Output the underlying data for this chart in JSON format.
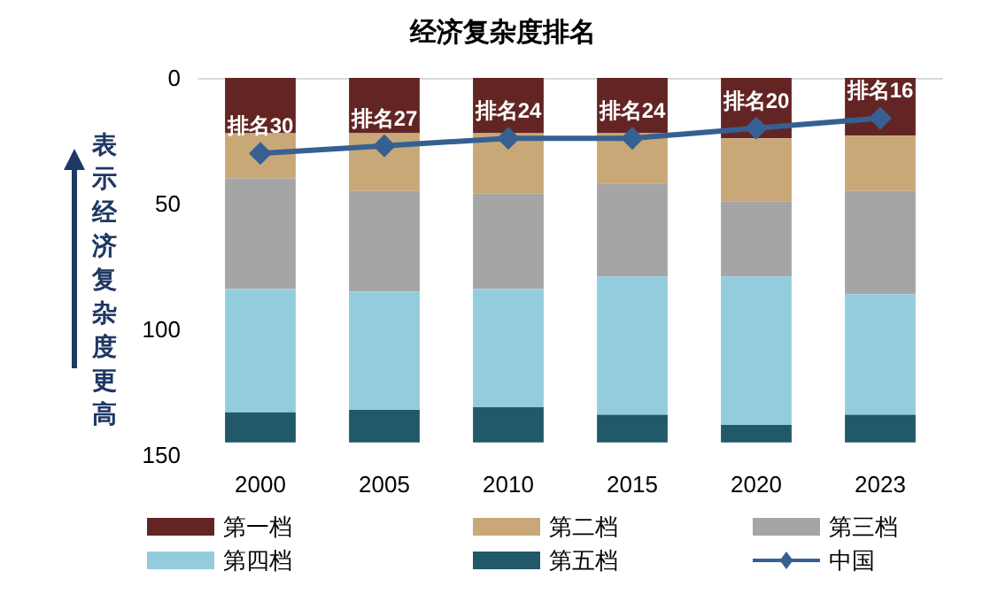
{
  "chart_data": {
    "type": "bar",
    "title": "经济复杂度排名",
    "ylabel": "表示经济复杂度更高",
    "stacked": true,
    "categories": [
      "2000",
      "2005",
      "2010",
      "2015",
      "2020",
      "2023"
    ],
    "ylim": [
      150,
      0
    ],
    "yticks": [
      0,
      50,
      100,
      150
    ],
    "grid": false,
    "legend": "bottom",
    "series": [
      {
        "name": "第一档",
        "color": "#632523",
        "values": [
          22,
          22,
          22,
          22,
          24,
          23
        ]
      },
      {
        "name": "第二档",
        "color": "#c9a878",
        "values": [
          18,
          23,
          24,
          20,
          25,
          22
        ]
      },
      {
        "name": "第三档",
        "color": "#a5a5a5",
        "values": [
          44,
          40,
          38,
          37,
          30,
          41
        ]
      },
      {
        "name": "第四档",
        "color": "#93cddd",
        "values": [
          49,
          47,
          47,
          55,
          59,
          48
        ]
      },
      {
        "name": "第五档",
        "color": "#215968",
        "values": [
          12,
          13,
          14,
          11,
          7,
          11
        ]
      },
      {
        "name": "中国",
        "type": "line",
        "color": "#376092",
        "marker": "diamond",
        "line_style": "solid",
        "values": [
          30,
          27,
          24,
          24,
          20,
          16
        ],
        "value_labels": [
          "排名30",
          "排名27",
          "排名24",
          "排名24",
          "排名20",
          "排名16"
        ]
      }
    ]
  }
}
